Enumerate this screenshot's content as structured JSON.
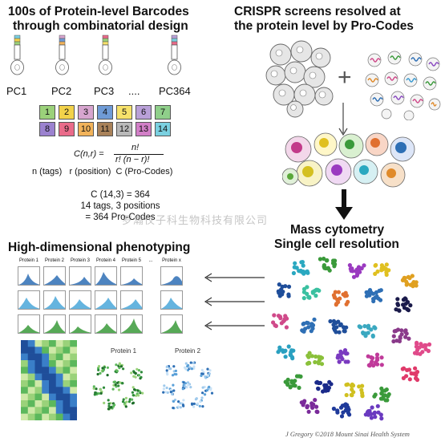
{
  "left_top": {
    "title_line1": "100s of Protein-level Barcodes",
    "title_line2": "through combinatorial design",
    "constructs": [
      {
        "label": "PC1"
      },
      {
        "label": "PC2"
      },
      {
        "label": "PC3"
      },
      {
        "label": "...."
      },
      {
        "label": "PC364"
      }
    ],
    "tags_row1": [
      {
        "n": "1",
        "color": "#9bd17a"
      },
      {
        "n": "2",
        "color": "#f2d24a"
      },
      {
        "n": "3",
        "color": "#d7a5cf"
      },
      {
        "n": "4",
        "color": "#6f9bd6"
      },
      {
        "n": "5",
        "color": "#f7e26b"
      },
      {
        "n": "6",
        "color": "#b9a0d8"
      },
      {
        "n": "7",
        "color": "#8fcf8a"
      }
    ],
    "tags_row2": [
      {
        "n": "8",
        "color": "#9b82cf"
      },
      {
        "n": "9",
        "color": "#ea6b8a"
      },
      {
        "n": "10",
        "color": "#f2b35a"
      },
      {
        "n": "11",
        "color": "#a9825a"
      },
      {
        "n": "12",
        "color": "#b9b9b9"
      },
      {
        "n": "13",
        "color": "#d27fc7"
      },
      {
        "n": "14",
        "color": "#7ad0e0"
      }
    ],
    "formula_lhs": "C(n,r) =",
    "formula_num": "n!",
    "formula_den": "r! (n − r)!",
    "formula_legend": "n (tags)   r (position)  C (Pro-Codes)",
    "calc_line1": "C (14,3) = 364",
    "calc_line2": "14 tags, 3 positions",
    "calc_line3": "= 364 Pro-Codes"
  },
  "right_top": {
    "title_line1": "CRISPR screens resolved at",
    "title_line2": "the protein level by Pro-Codes",
    "plus": "+"
  },
  "mass_cytometry": {
    "line1": "Mass cytometry",
    "line2": "Single cell resolution"
  },
  "phenotyping": {
    "title": "High-dimensional phenotyping",
    "columns": [
      "Protein 1",
      "Protein 2",
      "Protein 3",
      "Protein 4",
      "Protein 5",
      "...",
      "Protein x"
    ],
    "row_colors": [
      "#2e6fb5",
      "#4aa7d9",
      "#3a9a3a"
    ],
    "tsne_labels": [
      "Protein 1",
      "Protein 2"
    ]
  },
  "watermark": "罗瀚仪子科生物科技有限公司",
  "credit": "J Gregory ©2018 Mount Sinai Health System",
  "colors": {
    "dark": "#111111",
    "arrow": "#333333"
  }
}
